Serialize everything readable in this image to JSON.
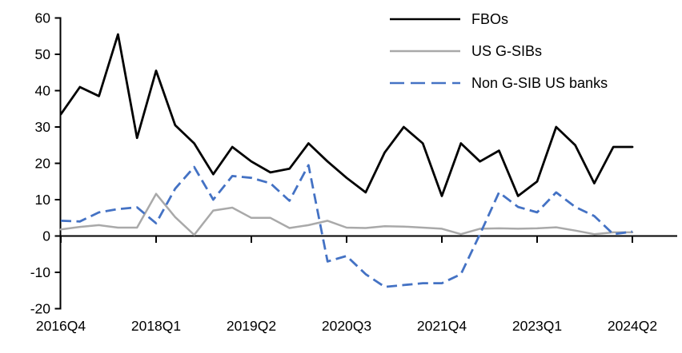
{
  "chart_data": {
    "type": "line",
    "title": "",
    "xlabel": "",
    "ylabel": "",
    "grid": false,
    "legend_position": "top-right",
    "x_axis": {
      "tick_labels": [
        "2016Q4",
        "2018Q1",
        "2019Q2",
        "2020Q3",
        "2021Q4",
        "2023Q1",
        "2024Q2"
      ],
      "ticks_every_n_categories": 5
    },
    "y_axis": {
      "ticks": [
        60,
        50,
        40,
        30,
        20,
        10,
        0,
        -10,
        -20
      ],
      "ylim": [
        -20,
        60
      ]
    },
    "categories": [
      "2016Q4",
      "2017Q1",
      "2017Q2",
      "2017Q3",
      "2017Q4",
      "2018Q1",
      "2018Q2",
      "2018Q3",
      "2018Q4",
      "2019Q1",
      "2019Q2",
      "2019Q3",
      "2019Q4",
      "2020Q1",
      "2020Q2",
      "2020Q3",
      "2020Q4",
      "2021Q1",
      "2021Q2",
      "2021Q3",
      "2021Q4",
      "2022Q1",
      "2022Q2",
      "2022Q3",
      "2022Q4",
      "2023Q1",
      "2023Q2",
      "2023Q3",
      "2023Q4",
      "2024Q1",
      "2024Q2"
    ],
    "series": [
      {
        "name": "FBOs",
        "color": "#000000",
        "style": "solid",
        "values": [
          33.5,
          41,
          38.5,
          55.5,
          27,
          45.5,
          30.5,
          25.5,
          17,
          24.5,
          20.5,
          17.5,
          18.5,
          25.5,
          20.5,
          16,
          12,
          23,
          30,
          25.5,
          11,
          25.5,
          20.5,
          23.5,
          11,
          15,
          30,
          25,
          14.5,
          24.5,
          24.5
        ]
      },
      {
        "name": "US G-SIBs",
        "color": "#a9a9a9",
        "style": "solid",
        "values": [
          1.8,
          2.5,
          3,
          2.3,
          2.3,
          11.6,
          5.2,
          0.3,
          7,
          7.8,
          5,
          5,
          2.2,
          3,
          4.2,
          2.3,
          2.2,
          2.7,
          2.6,
          2.3,
          2,
          0.5,
          2,
          2.1,
          2,
          2.1,
          2.4,
          1.5,
          0.5,
          1,
          1
        ]
      },
      {
        "name": "Non G-SIB US banks",
        "color": "#4472c4",
        "style": "dashed",
        "values": [
          4.2,
          4,
          6.5,
          7.4,
          7.9,
          3.5,
          13,
          19,
          10,
          16.5,
          16,
          14.5,
          9.7,
          19.5,
          -7,
          -5.5,
          -10.5,
          -14,
          -13.5,
          -13,
          -13,
          -10.5,
          0.5,
          12,
          8,
          6.5,
          12,
          8,
          5.5,
          0.5,
          1.2
        ]
      }
    ]
  }
}
